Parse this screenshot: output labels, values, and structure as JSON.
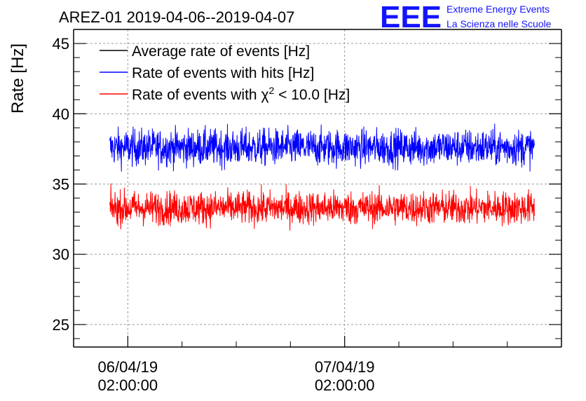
{
  "chart_data": {
    "type": "line",
    "title": "AREZ-01 2019-04-06--2019-04-07",
    "xlabel": "",
    "ylabel": "Rate [Hz]",
    "ylim": [
      23.4,
      46
    ],
    "yticks": [
      25,
      30,
      35,
      40,
      45
    ],
    "xticks": [
      {
        "line1": "06/04/19",
        "line2": "02:00:00",
        "hours": 0
      },
      {
        "line1": "07/04/19",
        "line2": "02:00:00",
        "hours": 24
      }
    ],
    "xlim_hours": [
      -6.0,
      48.0
    ],
    "grid": true,
    "legend_position": "top-left",
    "series": [
      {
        "name": "Average rate of events [Hz]",
        "color": "#000000",
        "values": []
      },
      {
        "name": "Rate of events with hits [Hz]",
        "color": "#0000ff",
        "x_hours": [
          -2,
          45
        ],
        "mean": 37.6,
        "spread": 1.2,
        "min": 35.4,
        "max": 40.6
      },
      {
        "name": "Rate of events with χ² < 10.0 [Hz]",
        "color": "#ff0000",
        "x_hours": [
          -2,
          45
        ],
        "mean": 33.3,
        "spread": 1.1,
        "min": 30.8,
        "max": 35.9
      }
    ],
    "legend_parts": {
      "chi_prefix": "Rate of events with ",
      "chi_symbol": "χ",
      "chi_sup": "2",
      "chi_suffix": " < 10.0 [Hz]"
    }
  },
  "logo": {
    "mark": "EEE",
    "line1": "Extreme Energy Events",
    "line2": "La Scienza nelle Scuole",
    "color": "#1414ff"
  }
}
